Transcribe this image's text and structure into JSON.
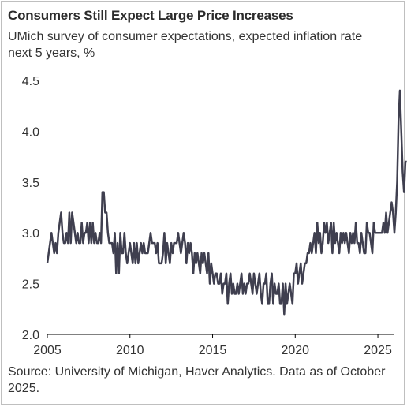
{
  "title": "Consumers Still Expect Large Price Increases",
  "subtitle": "UMich survey of consumer expectations, expected inflation rate next 5 years, %",
  "source": "Source: University of Michigan, Haver Analytics. Data as of October 2025.",
  "colors": {
    "line": "#3f3f4f",
    "axis": "#000000",
    "text": "#333333"
  },
  "chart_data": {
    "type": "line",
    "title": "Consumers Still Expect Large Price Increases",
    "xlabel": "",
    "ylabel": "",
    "xlim": [
      2005,
      2026
    ],
    "ylim": [
      2.0,
      4.5
    ],
    "grid": false,
    "x_ticks": [
      "2005",
      "2010",
      "2015",
      "2020",
      "2025"
    ],
    "y_ticks": [
      "2.0",
      "2.5",
      "3.0",
      "3.5",
      "4.0",
      "4.5"
    ],
    "series": [
      {
        "start": "2005-01",
        "frequency": "monthly",
        "values": [
          2.7,
          2.8,
          2.9,
          3.0,
          2.9,
          2.8,
          2.9,
          2.8,
          3.0,
          3.1,
          3.2,
          3.0,
          2.9,
          2.9,
          3.0,
          2.9,
          3.2,
          2.9,
          3.2,
          3.1,
          3.0,
          2.9,
          3.0,
          2.9,
          2.9,
          3.1,
          2.9,
          3.0,
          3.0,
          3.1,
          2.9,
          3.1,
          2.9,
          3.1,
          2.9,
          3.0,
          2.9,
          2.9,
          3.0,
          2.9,
          3.4,
          3.4,
          3.2,
          3.2,
          3.0,
          2.9,
          2.9,
          2.9,
          2.8,
          3.0,
          2.6,
          2.9,
          2.6,
          3.0,
          2.8,
          2.8,
          3.0,
          2.8,
          2.7,
          2.8,
          2.9,
          2.8,
          2.7,
          2.9,
          2.7,
          2.9,
          2.7,
          2.8,
          2.9,
          2.8,
          2.9,
          2.8,
          2.8,
          2.8,
          2.9,
          3.0,
          2.9,
          2.9,
          2.9,
          2.8,
          2.9,
          2.7,
          2.7,
          2.7,
          2.8,
          3.0,
          2.7,
          2.9,
          2.8,
          2.7,
          2.9,
          2.8,
          2.9,
          2.9,
          2.9,
          3.0,
          2.9,
          2.8,
          2.9,
          3.0,
          2.9,
          2.7,
          2.9,
          2.8,
          2.9,
          2.8,
          2.6,
          2.8,
          2.7,
          2.8,
          2.7,
          2.6,
          2.8,
          2.7,
          2.8,
          2.7,
          2.6,
          2.8,
          2.5,
          2.7,
          2.6,
          2.5,
          2.6,
          2.6,
          2.5,
          2.5,
          2.6,
          2.4,
          2.5,
          2.5,
          2.6,
          2.3,
          2.5,
          2.6,
          2.4,
          2.5,
          2.4,
          2.4,
          2.5,
          2.4,
          2.5,
          2.6,
          2.4,
          2.5,
          2.4,
          2.5,
          2.5,
          2.6,
          2.5,
          2.4,
          2.6,
          2.5,
          2.4,
          2.5,
          2.6,
          2.4,
          2.3,
          2.5,
          2.5,
          2.6,
          2.3,
          2.3,
          2.5,
          2.6,
          2.3,
          2.5,
          2.4,
          2.4,
          2.5,
          2.3,
          2.3,
          2.5,
          2.2,
          2.5,
          2.3,
          2.4,
          2.5,
          2.4,
          2.3,
          2.6,
          2.6,
          2.7,
          2.5,
          2.6,
          2.7,
          2.5,
          2.6,
          2.7,
          2.7,
          2.8,
          2.8,
          2.9,
          2.8,
          2.9,
          3.0,
          2.8,
          3.1,
          2.9,
          3.0,
          2.8,
          2.9,
          3.1,
          3.0,
          3.1,
          2.9,
          3.0,
          3.1,
          2.8,
          3.1,
          2.9,
          3.0,
          2.9,
          2.8,
          3.0,
          2.9,
          3.0,
          2.9,
          3.0,
          2.9,
          2.8,
          3.0,
          2.9,
          3.0,
          2.9,
          3.1,
          2.9,
          2.9,
          2.8,
          3.0,
          2.9,
          2.8,
          2.8,
          3.1,
          3.0,
          3.0,
          2.9,
          2.8,
          3.1,
          3.0,
          3.0,
          3.0,
          3.0,
          3.0,
          3.0,
          3.1,
          3.0,
          3.2,
          3.0,
          3.1,
          3.2,
          3.3,
          3.2,
          3.0,
          3.2,
          3.5,
          4.1,
          4.4,
          4.0,
          3.6,
          3.4,
          3.7,
          3.7
        ]
      }
    ]
  }
}
